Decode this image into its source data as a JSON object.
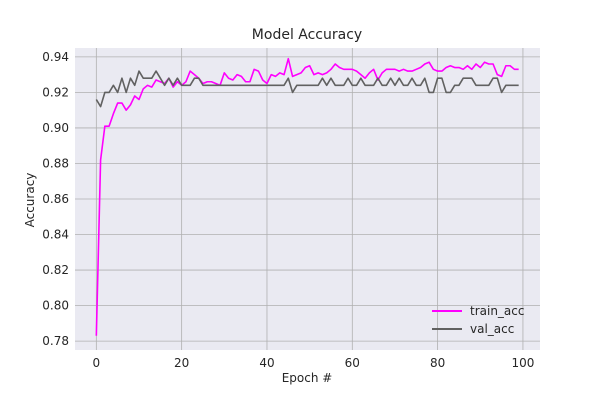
{
  "chart_data": {
    "type": "line",
    "title": "Model Accuracy",
    "xlabel": "Epoch #",
    "ylabel": "Accuracy",
    "xlim": [
      -5,
      104
    ],
    "ylim": [
      0.775,
      0.945
    ],
    "xticks": [
      0,
      20,
      40,
      60,
      80,
      100
    ],
    "yticks": [
      0.78,
      0.8,
      0.82,
      0.84,
      0.86,
      0.88,
      0.9,
      0.92,
      0.94
    ],
    "ytick_labels": [
      "0.78",
      "0.80",
      "0.82",
      "0.84",
      "0.86",
      "0.88",
      "0.90",
      "0.92",
      "0.94"
    ],
    "xtick_labels": [
      "0",
      "20",
      "40",
      "60",
      "80",
      "100"
    ],
    "grid": true,
    "legend_position": "bottom-right",
    "background": "#EAEAF2",
    "grid_color": "#B0B0B0",
    "series": [
      {
        "name": "train_acc",
        "color": "#FF00FF",
        "values": [
          0.783,
          0.882,
          0.901,
          0.901,
          0.908,
          0.914,
          0.914,
          0.91,
          0.913,
          0.918,
          0.916,
          0.922,
          0.924,
          0.923,
          0.927,
          0.926,
          0.925,
          0.928,
          0.923,
          0.926,
          0.924,
          0.926,
          0.932,
          0.93,
          0.928,
          0.925,
          0.926,
          0.926,
          0.925,
          0.924,
          0.931,
          0.928,
          0.927,
          0.93,
          0.929,
          0.926,
          0.926,
          0.933,
          0.932,
          0.927,
          0.925,
          0.93,
          0.929,
          0.931,
          0.93,
          0.939,
          0.929,
          0.93,
          0.931,
          0.934,
          0.935,
          0.93,
          0.931,
          0.93,
          0.931,
          0.933,
          0.936,
          0.934,
          0.933,
          0.933,
          0.933,
          0.932,
          0.93,
          0.928,
          0.931,
          0.933,
          0.927,
          0.931,
          0.933,
          0.933,
          0.933,
          0.932,
          0.933,
          0.932,
          0.932,
          0.933,
          0.934,
          0.936,
          0.937,
          0.933,
          0.932,
          0.932,
          0.934,
          0.935,
          0.934,
          0.934,
          0.933,
          0.935,
          0.933,
          0.936,
          0.934,
          0.937,
          0.936,
          0.936,
          0.93,
          0.929,
          0.935,
          0.935,
          0.933,
          0.933
        ]
      },
      {
        "name": "val_acc",
        "color": "#616161",
        "values": [
          0.916,
          0.912,
          0.92,
          0.92,
          0.924,
          0.92,
          0.928,
          0.92,
          0.928,
          0.924,
          0.932,
          0.928,
          0.928,
          0.928,
          0.932,
          0.928,
          0.924,
          0.928,
          0.924,
          0.928,
          0.924,
          0.924,
          0.924,
          0.928,
          0.928,
          0.924,
          0.924,
          0.924,
          0.924,
          0.924,
          0.924,
          0.924,
          0.924,
          0.924,
          0.924,
          0.924,
          0.924,
          0.924,
          0.924,
          0.924,
          0.924,
          0.924,
          0.924,
          0.924,
          0.924,
          0.928,
          0.92,
          0.924,
          0.924,
          0.924,
          0.924,
          0.924,
          0.924,
          0.928,
          0.924,
          0.928,
          0.924,
          0.924,
          0.924,
          0.928,
          0.924,
          0.924,
          0.928,
          0.924,
          0.924,
          0.924,
          0.928,
          0.924,
          0.924,
          0.928,
          0.924,
          0.928,
          0.924,
          0.924,
          0.928,
          0.924,
          0.924,
          0.928,
          0.92,
          0.92,
          0.928,
          0.928,
          0.92,
          0.92,
          0.924,
          0.924,
          0.928,
          0.928,
          0.928,
          0.924,
          0.924,
          0.924,
          0.924,
          0.928,
          0.928,
          0.92,
          0.924,
          0.924,
          0.924,
          0.924
        ]
      }
    ]
  }
}
